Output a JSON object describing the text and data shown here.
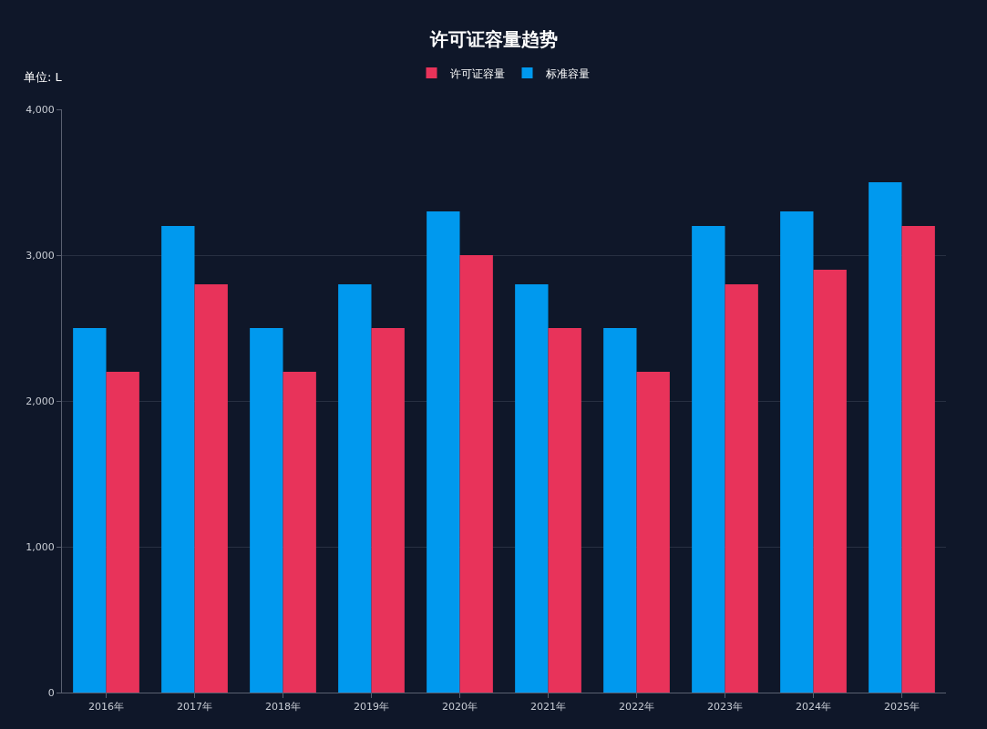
{
  "chart_data": {
    "type": "bar",
    "title": "许可证容量趋势",
    "annotations": [
      "单位: L"
    ],
    "categories": [
      "2016年",
      "2017年",
      "2018年",
      "2019年",
      "2020年",
      "2021年",
      "2022年",
      "2023年",
      "2024年",
      "2025年"
    ],
    "series": [
      {
        "name": "标准容量",
        "color": "#0099ee",
        "values": [
          2500,
          3200,
          2500,
          2800,
          3300,
          2800,
          2500,
          3200,
          3300,
          3500
        ]
      },
      {
        "name": "许可证容量",
        "color": "#e8335a",
        "values": [
          2200,
          2800,
          2200,
          2500,
          3000,
          2500,
          2200,
          2800,
          2900,
          3200
        ]
      }
    ],
    "ylim": [
      0,
      4000
    ],
    "yticks": [
      0,
      {
        "value": 1000,
        "label": "1,000"
      },
      {
        "value": 2000,
        "label": "2,000"
      },
      {
        "value": 3000,
        "label": "3,000"
      },
      {
        "value": 4000,
        "label": "4,000"
      }
    ],
    "grid": "y",
    "legend": "top"
  }
}
